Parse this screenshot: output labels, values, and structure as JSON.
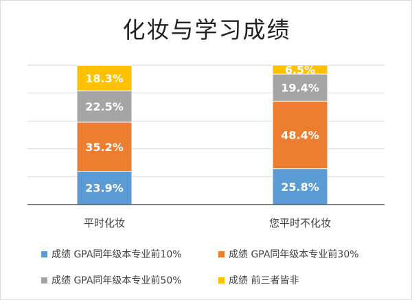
{
  "chart_data": {
    "type": "bar",
    "stacked": true,
    "title": "化妆与学习成绩",
    "xlabel": "",
    "ylabel": "",
    "ylim": [
      0,
      100
    ],
    "categories": [
      "平时化妆",
      "您平时不化妆"
    ],
    "series": [
      {
        "name": "成绩 GPA同年级本专业前10%",
        "values": [
          23.9,
          25.8
        ],
        "labels": [
          "23.9%",
          "25.8%"
        ],
        "color": "#5b9bd5"
      },
      {
        "name": "成绩 GPA同年级本专业前30%",
        "values": [
          35.2,
          48.4
        ],
        "labels": [
          "35.2%",
          "48.4%"
        ],
        "color": "#ed7d31"
      },
      {
        "name": "成绩 GPA同年级本专业前50%",
        "values": [
          22.5,
          19.4
        ],
        "labels": [
          "22.5%",
          "19.4%"
        ],
        "color": "#a5a5a5"
      },
      {
        "name": "成绩 前三者皆非",
        "values": [
          18.3,
          6.5
        ],
        "labels": [
          "18.3%",
          "6.5%"
        ],
        "color": "#ffc000"
      }
    ],
    "grid": true,
    "legend_position": "bottom"
  }
}
